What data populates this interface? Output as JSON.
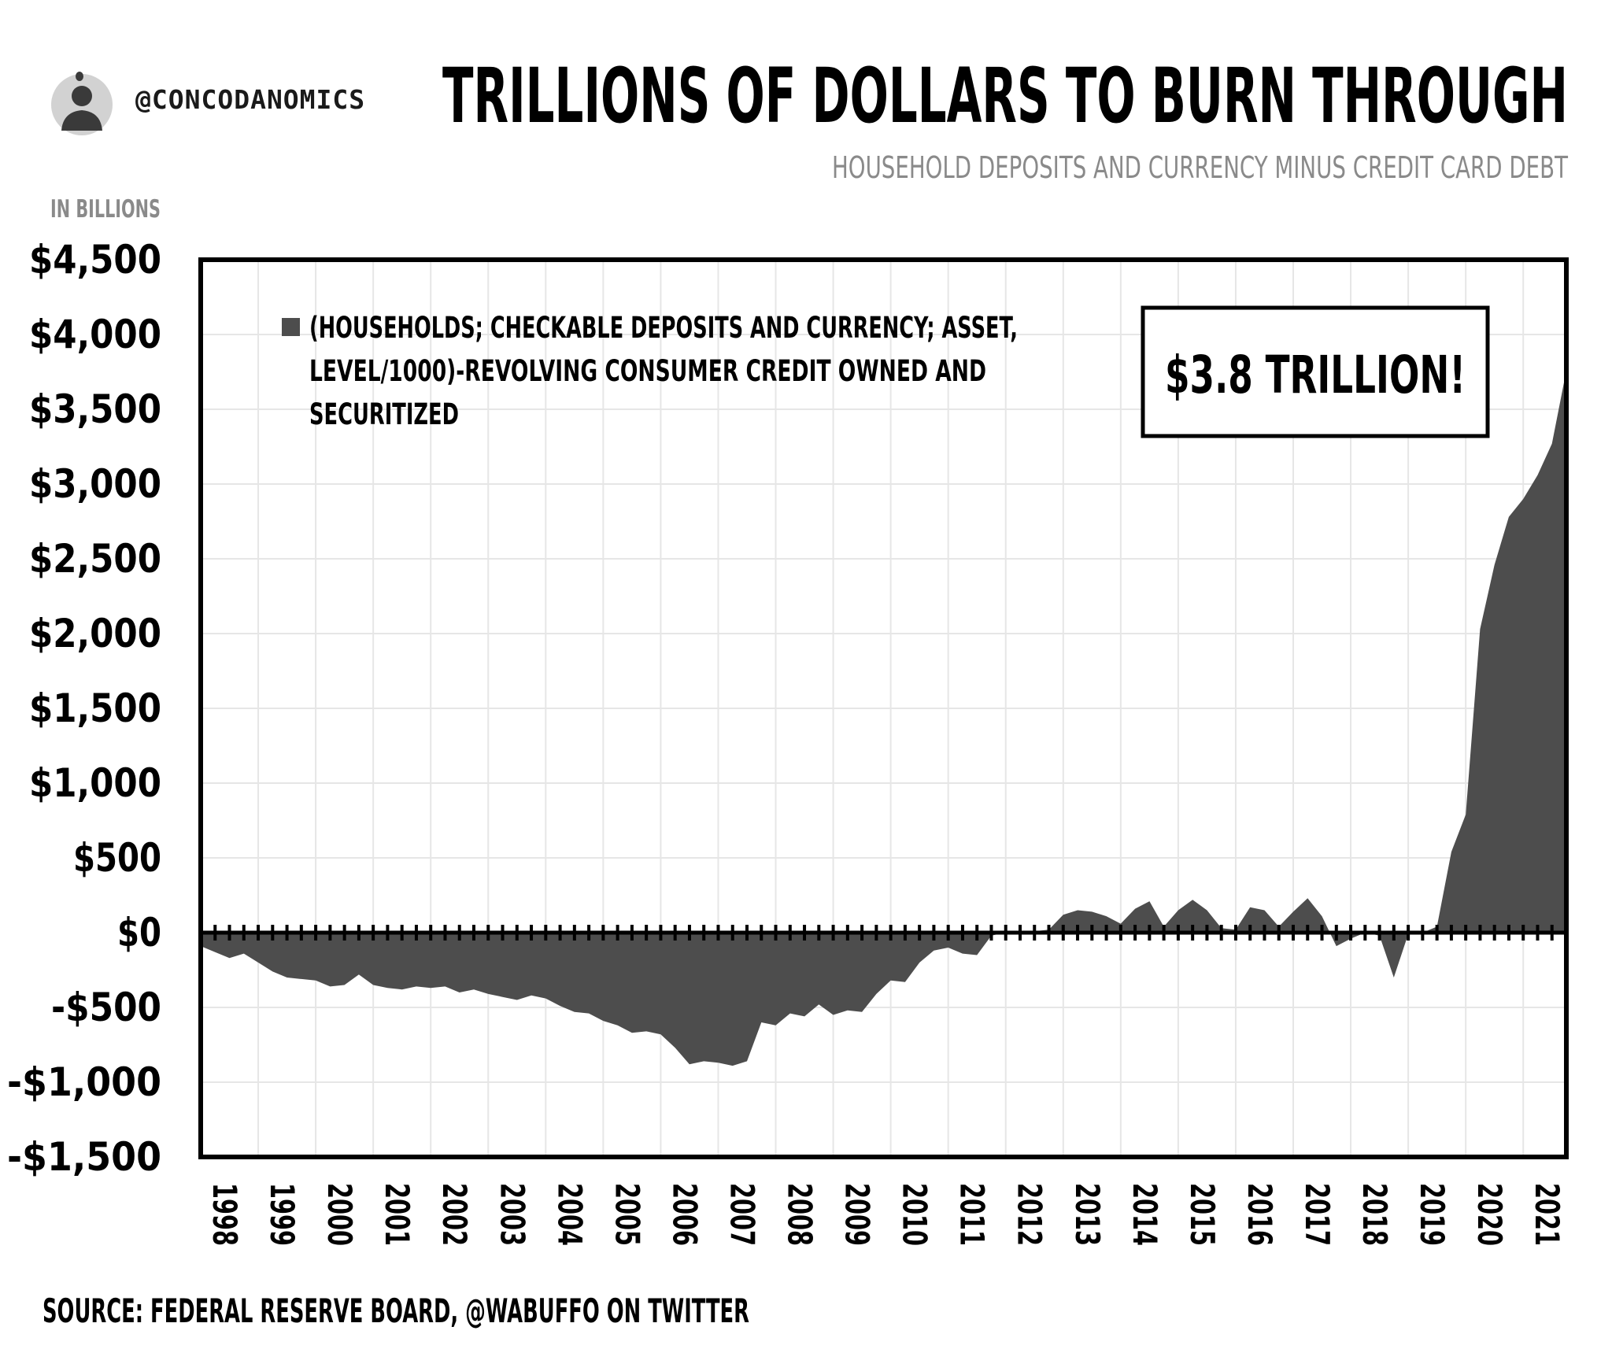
{
  "header": {
    "handle": "@CONCODANOMICS",
    "title": "TRILLIONS OF DOLLARS TO BURN THROUGH",
    "subtitle": "HOUSEHOLD DEPOSITS AND CURRENCY MINUS CREDIT CARD DEBT",
    "avatar_icon": "person-portrait-icon"
  },
  "footer": {
    "source": "SOURCE: FEDERAL RESERVE BOARD, @WABUFFO ON TWITTER"
  },
  "colors": {
    "area": "#4d4d4d",
    "grid": "#e6e6e6",
    "axis": "#000000",
    "subtitle": "#8a8a8a"
  },
  "chart_data": {
    "type": "area",
    "ylabel": "IN BILLIONS",
    "xlabel": "",
    "ylim": [
      -1500,
      4500
    ],
    "y_ticks": [
      4500,
      4000,
      3500,
      3000,
      2500,
      2000,
      1500,
      1000,
      500,
      0,
      -500,
      -1000,
      -1500
    ],
    "y_tick_labels": [
      "$4,500",
      "$4,000",
      "$3,500",
      "$3,000",
      "$2,500",
      "$2,000",
      "$1,500",
      "$1,000",
      "$500",
      "$0",
      "-$500",
      "-$1,000",
      "-$1,500"
    ],
    "x_tick_labels": [
      "1998",
      "1999",
      "2000",
      "2001",
      "2002",
      "2003",
      "2004",
      "2005",
      "2006",
      "2007",
      "2008",
      "2009",
      "2010",
      "2011",
      "2012",
      "2013",
      "2014",
      "2015",
      "2016",
      "2017",
      "2018",
      "2019",
      "2020",
      "2021"
    ],
    "xlim": [
      1998.0,
      2021.75
    ],
    "legend": {
      "position": "top-left",
      "entries": [
        "(HOUSEHOLDS; CHECKABLE DEPOSITS AND CURRENCY; ASSET, LEVEL/1000)-REVOLVING CONSUMER CREDIT OWNED AND SECURITIZED"
      ]
    },
    "annotation": "$3.8 TRILLION!",
    "grid": true,
    "series": [
      {
        "x": [
          1998.0,
          1998.25,
          1998.5,
          1998.75,
          1999.0,
          1999.25,
          1999.5,
          1999.75,
          2000.0,
          2000.25,
          2000.5,
          2000.75,
          2001.0,
          2001.25,
          2001.5,
          2001.75,
          2002.0,
          2002.25,
          2002.5,
          2002.75,
          2003.0,
          2003.25,
          2003.5,
          2003.75,
          2004.0,
          2004.25,
          2004.5,
          2004.75,
          2005.0,
          2005.25,
          2005.5,
          2005.75,
          2006.0,
          2006.25,
          2006.5,
          2006.75,
          2007.0,
          2007.25,
          2007.5,
          2007.75,
          2008.0,
          2008.25,
          2008.5,
          2008.75,
          2009.0,
          2009.25,
          2009.5,
          2009.75,
          2010.0,
          2010.25,
          2010.5,
          2010.75,
          2011.0,
          2011.25,
          2011.5,
          2011.75,
          2012.0,
          2012.25,
          2012.5,
          2012.75,
          2013.0,
          2013.25,
          2013.5,
          2013.75,
          2014.0,
          2014.25,
          2014.5,
          2014.75,
          2015.0,
          2015.25,
          2015.5,
          2015.75,
          2016.0,
          2016.25,
          2016.5,
          2016.75,
          2017.0,
          2017.25,
          2017.5,
          2017.75,
          2018.0,
          2018.25,
          2018.5,
          2018.75,
          2019.0,
          2019.25,
          2019.5,
          2019.75,
          2020.0,
          2020.25,
          2020.5,
          2020.75,
          2021.0,
          2021.25,
          2021.5,
          2021.75
        ],
        "values": [
          -90,
          -130,
          -170,
          -140,
          -200,
          -260,
          -300,
          -310,
          -320,
          -360,
          -350,
          -280,
          -350,
          -370,
          -380,
          -360,
          -370,
          -360,
          -400,
          -380,
          -410,
          -430,
          -450,
          -420,
          -440,
          -490,
          -530,
          -540,
          -590,
          -620,
          -670,
          -660,
          -680,
          -770,
          -880,
          -860,
          -870,
          -890,
          -860,
          -600,
          -620,
          -540,
          -560,
          -480,
          -550,
          -520,
          -530,
          -410,
          -320,
          -330,
          -200,
          -120,
          -100,
          -140,
          -150,
          -20,
          0,
          0,
          10,
          20,
          120,
          150,
          140,
          110,
          60,
          160,
          210,
          40,
          150,
          220,
          150,
          30,
          20,
          170,
          150,
          40,
          140,
          230,
          110,
          -90,
          -40,
          0,
          -20,
          -300,
          -10,
          0,
          40,
          540,
          790,
          2030,
          2460,
          2780,
          2900,
          3060,
          3270,
          3760
        ]
      }
    ]
  }
}
